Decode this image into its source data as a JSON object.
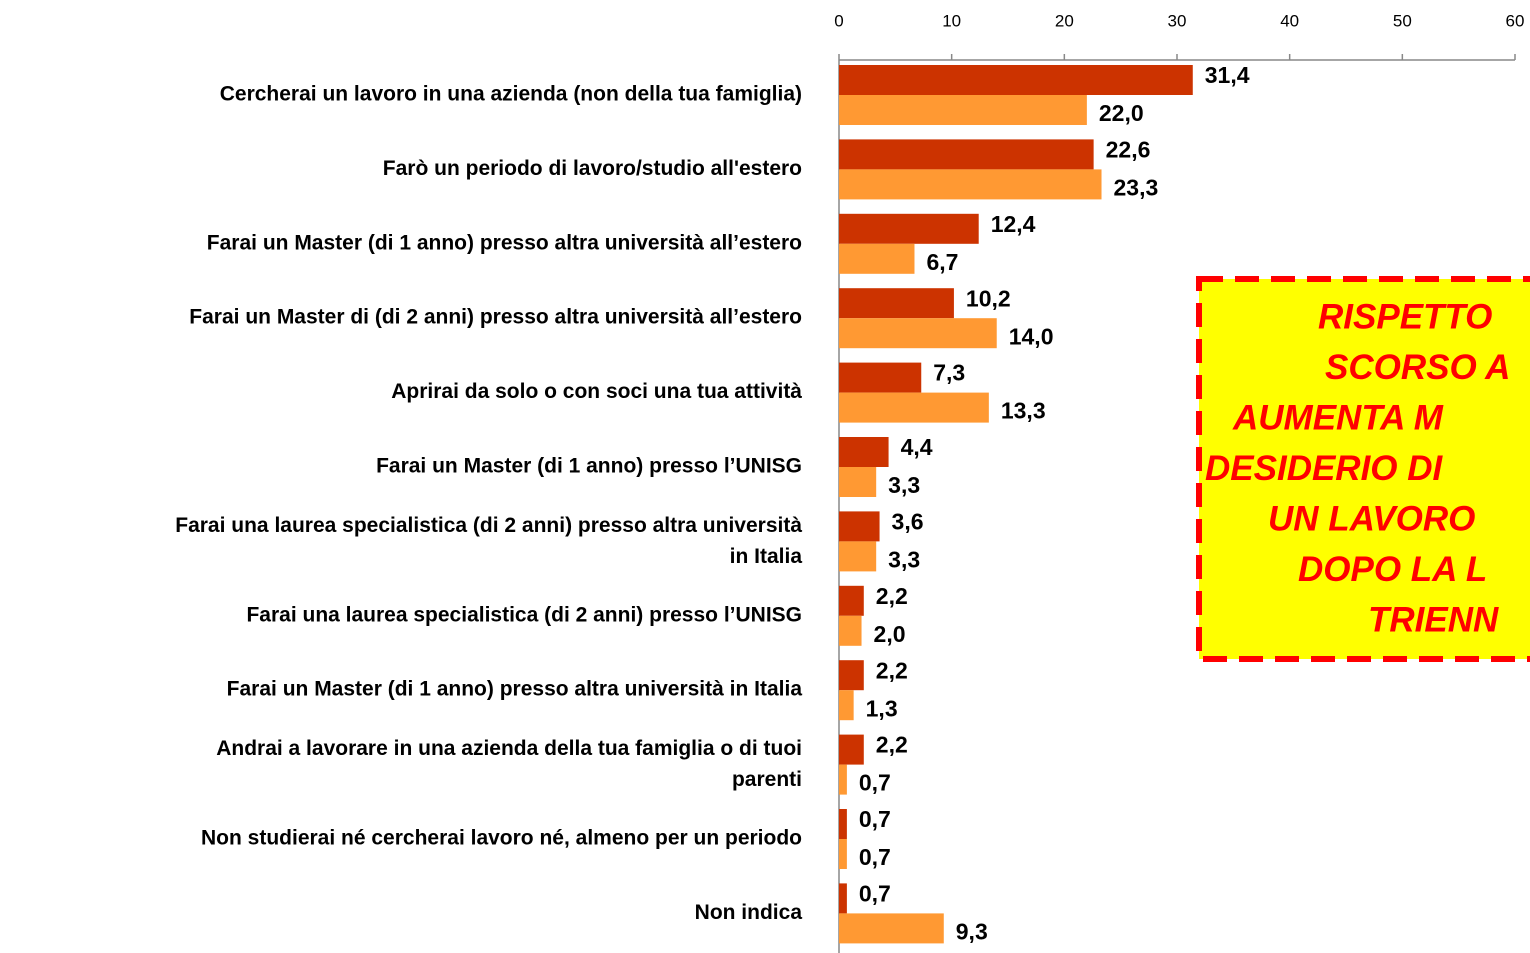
{
  "chart_data": {
    "type": "bar",
    "orientation": "horizontal",
    "categories": [
      "Cercherai un lavoro in una azienda (non della tua famiglia)",
      "Farò un periodo di lavoro/studio all'estero",
      "Farai un Master (di 1 anno) presso altra università all’estero",
      "Farai un Master di (di 2 anni) presso altra università all’estero",
      "Aprirai da solo o con soci una tua attività",
      "Farai un Master (di 1 anno) presso l’UNISG",
      "Farai una laurea specialistica (di 2 anni) presso altra università\nin Italia",
      "Farai una laurea specialistica (di 2 anni) presso l’UNISG",
      "Farai un Master (di 1 anno) presso altra università in Italia",
      "Andrai a lavorare in una azienda della tua famiglia  o di tuoi\nparenti",
      "Non studierai né cercherai lavoro né, almeno per un periodo",
      "Non indica"
    ],
    "series": [
      {
        "color": "#cc3300",
        "values": [
          31.4,
          22.6,
          12.4,
          10.2,
          7.3,
          4.4,
          3.6,
          2.2,
          2.2,
          2.2,
          0.7,
          0.7
        ],
        "value_labels": [
          "31,4",
          "22,6",
          "12,4",
          "10,2",
          "7,3",
          "4,4",
          "3,6",
          "2,2",
          "2,2",
          "2,2",
          "0,7",
          "0,7"
        ]
      },
      {
        "color": "#ff9933",
        "values": [
          22.0,
          23.3,
          6.7,
          14.0,
          13.3,
          3.3,
          3.3,
          2.0,
          1.3,
          0.7,
          0.7,
          9.3
        ],
        "value_labels": [
          "22,0",
          "23,3",
          "6,7",
          "14,0",
          "13,3",
          "3,3",
          "3,3",
          "2,0",
          "1,3",
          "0,7",
          "0,7",
          "9,3"
        ]
      }
    ],
    "xlim": [
      0,
      60
    ],
    "xticks": [
      0,
      10,
      20,
      30,
      40,
      50,
      60
    ],
    "annotation": [
      "RISPETTO",
      "SCORSO A",
      "AUMENTA M",
      "DESIDERIO DI",
      "UN LAVORO",
      "DOPO LA L",
      "TRIENN"
    ]
  }
}
